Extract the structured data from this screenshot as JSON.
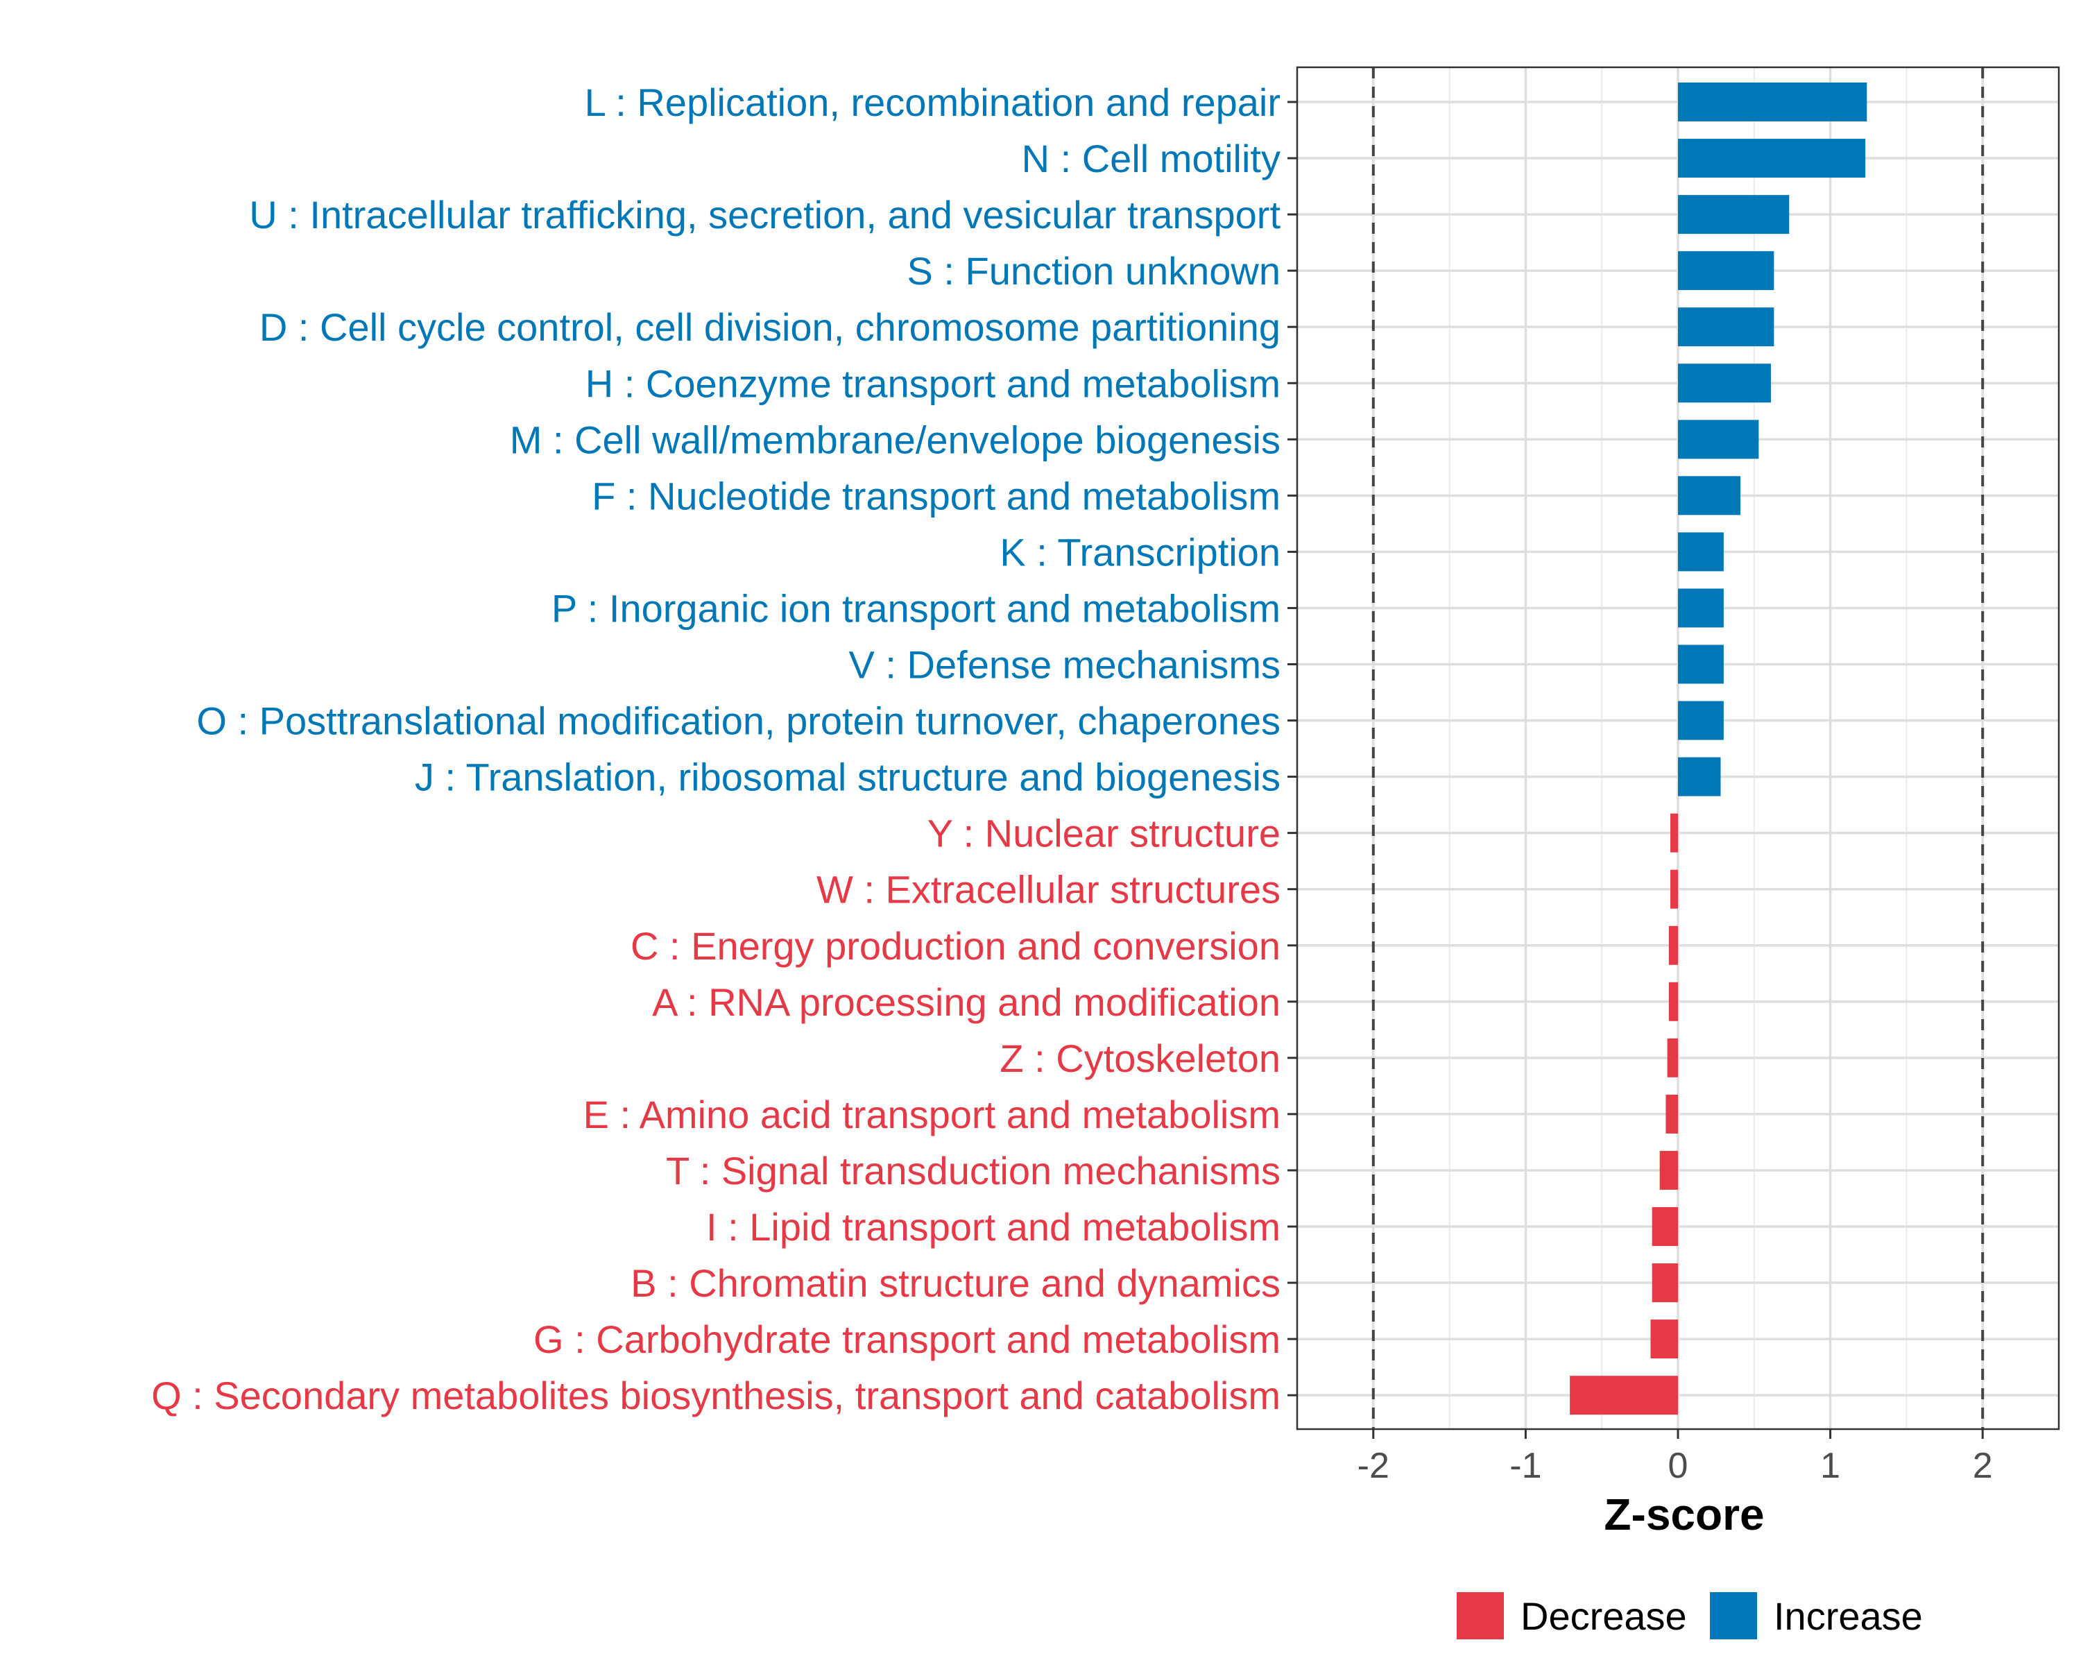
{
  "chart_data": {
    "type": "bar",
    "orientation": "horizontal",
    "xlabel": "Z-score",
    "ylabel": "",
    "xlim": [
      -2.5,
      2.5
    ],
    "xticks": [
      -2,
      -1,
      0,
      1,
      2
    ],
    "xtick_labels": [
      "-2",
      "-1",
      "0",
      "1",
      "2"
    ],
    "reference_lines": [
      -2,
      2
    ],
    "grid": true,
    "legend_position": "bottom",
    "categories": [
      "L : Replication, recombination and repair",
      "N : Cell motility",
      "U : Intracellular trafficking, secretion, and vesicular transport",
      "S : Function unknown",
      "D : Cell cycle control, cell division, chromosome partitioning",
      "H : Coenzyme transport and metabolism",
      "M : Cell wall/membrane/envelope biogenesis",
      "F : Nucleotide transport and metabolism",
      "K : Transcription",
      "P : Inorganic ion transport and metabolism",
      "V : Defense mechanisms",
      "O : Posttranslational modification, protein turnover, chaperones",
      "J : Translation, ribosomal structure and biogenesis",
      "Y : Nuclear structure",
      "W : Extracellular structures",
      "C : Energy production and conversion",
      "A : RNA processing and modification",
      "Z : Cytoskeleton",
      "E : Amino acid transport and metabolism",
      "T : Signal transduction mechanisms",
      "I : Lipid transport and metabolism",
      "B : Chromatin structure and dynamics",
      "G : Carbohydrate transport and metabolism",
      "Q : Secondary metabolites biosynthesis, transport and catabolism"
    ],
    "values": [
      1.24,
      1.23,
      0.73,
      0.63,
      0.63,
      0.61,
      0.53,
      0.41,
      0.3,
      0.3,
      0.3,
      0.3,
      0.28,
      -0.05,
      -0.05,
      -0.06,
      -0.06,
      -0.07,
      -0.08,
      -0.12,
      -0.17,
      -0.17,
      -0.18,
      -0.71
    ],
    "groups": [
      "Increase",
      "Increase",
      "Increase",
      "Increase",
      "Increase",
      "Increase",
      "Increase",
      "Increase",
      "Increase",
      "Increase",
      "Increase",
      "Increase",
      "Increase",
      "Decrease",
      "Decrease",
      "Decrease",
      "Decrease",
      "Decrease",
      "Decrease",
      "Decrease",
      "Decrease",
      "Decrease",
      "Decrease",
      "Decrease"
    ],
    "legend": [
      {
        "name": "Decrease",
        "color": "#E63946"
      },
      {
        "name": "Increase",
        "color": "#0077B6"
      }
    ]
  }
}
